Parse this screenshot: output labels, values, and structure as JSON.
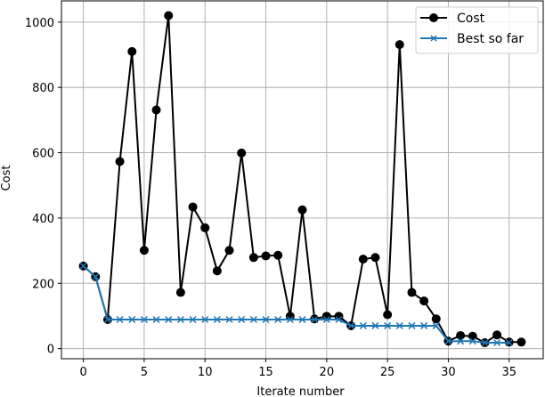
{
  "chart_data": {
    "type": "line",
    "title": "",
    "xlabel": "Iterate number",
    "ylabel": "Cost",
    "xlim": [
      -1.8,
      37.8
    ],
    "ylim": [
      -31,
      1065
    ],
    "grid": true,
    "legend_position": "upper right",
    "x_ticks": [
      0,
      5,
      10,
      15,
      20,
      25,
      30,
      35
    ],
    "y_ticks": [
      0,
      200,
      400,
      600,
      800,
      1000
    ],
    "x": [
      0,
      1,
      2,
      3,
      4,
      5,
      6,
      7,
      8,
      9,
      10,
      11,
      12,
      13,
      14,
      15,
      16,
      17,
      18,
      19,
      20,
      21,
      22,
      23,
      24,
      25,
      26,
      27,
      28,
      29,
      30,
      31,
      32,
      33,
      34,
      35,
      36
    ],
    "series": [
      {
        "name": "Cost",
        "color": "#000000",
        "marker": "circle",
        "x": [
          0,
          1,
          2,
          3,
          4,
          5,
          6,
          7,
          8,
          9,
          10,
          11,
          12,
          13,
          14,
          15,
          16,
          17,
          18,
          19,
          20,
          21,
          22,
          23,
          24,
          25,
          26,
          27,
          28,
          29,
          30,
          31,
          32,
          33,
          34,
          35,
          36
        ],
        "values": [
          253,
          220,
          89,
          573,
          910,
          301,
          731,
          1020,
          172,
          434,
          370,
          238,
          301,
          599,
          279,
          284,
          286,
          99,
          425,
          91,
          99,
          99,
          70,
          274,
          279,
          104,
          931,
          172,
          146,
          91,
          23,
          40,
          38,
          18,
          42,
          20,
          20
        ]
      },
      {
        "name": "Best so far",
        "color": "#1f77b4",
        "marker": "x",
        "x": [
          0,
          1,
          2,
          3,
          4,
          5,
          6,
          7,
          8,
          9,
          10,
          11,
          12,
          13,
          14,
          15,
          16,
          17,
          18,
          19,
          20,
          21,
          22,
          23,
          24,
          25,
          26,
          27,
          28,
          29,
          30,
          31,
          32,
          33,
          34,
          35
        ],
        "values": [
          253,
          220,
          89,
          89,
          89,
          89,
          89,
          89,
          89,
          89,
          89,
          89,
          89,
          89,
          89,
          89,
          89,
          89,
          89,
          89,
          89,
          89,
          70,
          70,
          70,
          70,
          70,
          70,
          70,
          70,
          23,
          23,
          23,
          18,
          18,
          18
        ]
      }
    ]
  },
  "colors": {
    "grid": "#b0b0b0",
    "axes": "#000000",
    "legend_border": "#cccccc"
  }
}
